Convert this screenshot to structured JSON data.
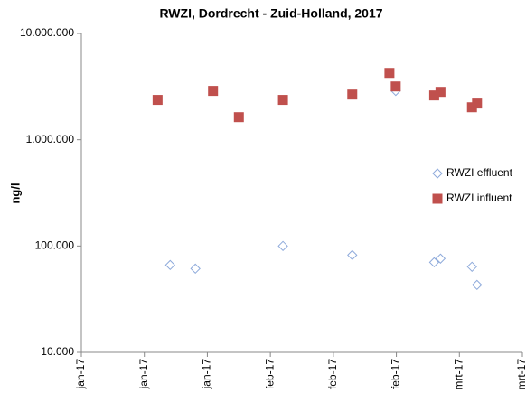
{
  "chart_data": {
    "type": "scatter",
    "title": "RWZI, Dordrecht - Zuid-Holland, 2017",
    "y_label": "ng/l",
    "log_y": true,
    "legend": "right",
    "xlim": [
      0,
      7
    ],
    "xticks": [
      {
        "value": 0,
        "label": "jan-17"
      },
      {
        "value": 1,
        "label": "jan-17"
      },
      {
        "value": 2,
        "label": "jan-17"
      },
      {
        "value": 3,
        "label": "feb-17"
      },
      {
        "value": 4,
        "label": "feb-17"
      },
      {
        "value": 5,
        "label": "feb-17"
      },
      {
        "value": 6,
        "label": "mrt-17"
      },
      {
        "value": 7,
        "label": "mrt-17"
      }
    ],
    "ylim": [
      10000,
      10000000
    ],
    "yticks": [
      {
        "value": 10000,
        "label": "10.000"
      },
      {
        "value": 100000,
        "label": "100.000"
      },
      {
        "value": 1000000,
        "label": "1.000.000"
      },
      {
        "value": 10000000,
        "label": "10.000.000"
      }
    ],
    "series": [
      {
        "name": "RWZI effluent",
        "color": "#8eaadb",
        "marker": "diamond",
        "x": [
          1.41,
          1.81,
          3.2,
          4.3,
          4.99,
          5.6,
          5.7,
          6.2,
          6.28
        ],
        "values": [
          66300,
          61300,
          100000,
          82200,
          2880000,
          70300,
          76100,
          63800,
          43100
        ]
      },
      {
        "name": "RWZI influent",
        "color": "#c0504d",
        "marker": "square",
        "x": [
          1.21,
          2.09,
          2.5,
          3.2,
          4.3,
          4.89,
          4.99,
          5.6,
          5.7,
          6.2,
          6.28
        ],
        "values": [
          2370000,
          2880000,
          1630000,
          2370000,
          2660000,
          4250000,
          3170000,
          2610000,
          2820000,
          2020000,
          2190000
        ]
      }
    ]
  }
}
